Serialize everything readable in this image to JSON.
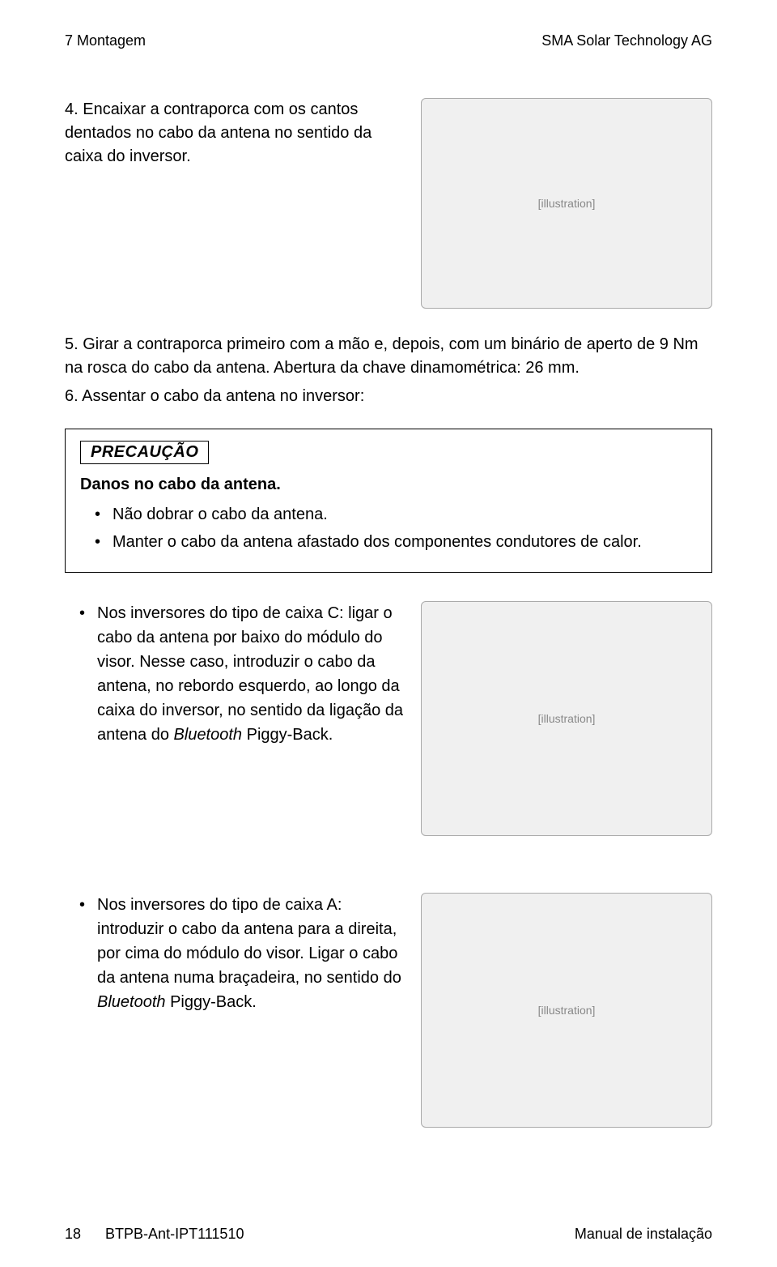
{
  "header": {
    "section": "7 Montagem",
    "company": "SMA Solar Technology AG"
  },
  "step4": {
    "text": "4. Encaixar a contraporca com os cantos dentados no cabo da antena no sentido da caixa do inversor.",
    "figure_alt": "[illustration]"
  },
  "step5": {
    "text": "5. Girar a contraporca primeiro com a mão e, depois, com um binário de aperto de 9 Nm na rosca do cabo da antena. Abertura da chave dinamométrica: 26 mm."
  },
  "step6": {
    "text": "6. Assentar o cabo da antena no inversor:"
  },
  "callout": {
    "title": "PRECAUÇÃO",
    "subtitle": "Danos no cabo da antena.",
    "items": [
      "Não dobrar o cabo da antena.",
      "Manter o cabo da antena afastado dos componentes condutores de calor."
    ]
  },
  "bulletC": {
    "pre": "Nos inversores do tipo de caixa C: ligar o cabo da antena por baixo do módulo do visor. Nesse caso, introduzir o cabo da antena, no rebordo esquerdo, ao longo da caixa do inversor, no sentido da ligação da antena do ",
    "italic": "Bluetooth",
    "post": " Piggy-Back.",
    "figure_alt": "[illustration]"
  },
  "bulletA": {
    "pre": "Nos inversores do tipo de caixa A: introduzir o cabo da antena para a direita, por cima do módulo do visor. Ligar o cabo da antena numa braçadeira, no sentido do ",
    "italic": "Bluetooth",
    "post": " Piggy-Back.",
    "figure_alt": "[illustration]"
  },
  "footer": {
    "page": "18",
    "doc": "BTPB-Ant-IPT111510",
    "title": "Manual de instalação"
  }
}
